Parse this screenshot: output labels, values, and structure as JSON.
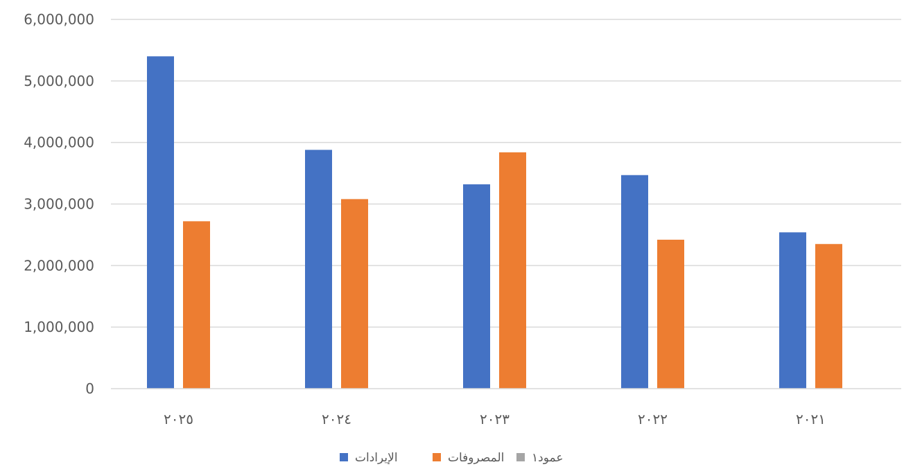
{
  "colors": {
    "revenue": "#4472C4",
    "expenses": "#ED7D31",
    "column1": "#A5A5A5",
    "grid": "#D9D9D9",
    "axis_text": "#595959"
  },
  "chart_data": {
    "type": "bar",
    "title": "",
    "xlabel": "",
    "ylabel": "",
    "categories": [
      "٢٠٢٥",
      "٢٠٢٤",
      "٢٠٢٣",
      "٢٠٢٢",
      "٢٠٢١"
    ],
    "series": [
      {
        "name": "الإيرادات",
        "values": [
          5400000,
          3880000,
          3320000,
          3470000,
          2540000
        ]
      },
      {
        "name": "المصروفات",
        "values": [
          2720000,
          3080000,
          3840000,
          2420000,
          2350000
        ]
      },
      {
        "name": "عمود١",
        "values": [
          0,
          0,
          0,
          0,
          0
        ]
      }
    ],
    "ylim": [
      0,
      6000000
    ],
    "yticks": [
      "0",
      "1,000,000",
      "2,000,000",
      "3,000,000",
      "4,000,000",
      "5,000,000",
      "6,000,000"
    ],
    "grid": true,
    "legend_position": "bottom"
  }
}
